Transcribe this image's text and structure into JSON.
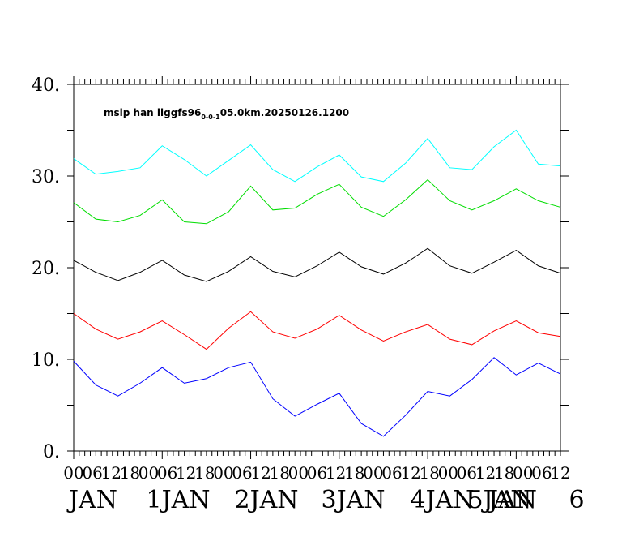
{
  "chart_data": {
    "type": "line",
    "title": "mslp han llggfs96",
    "title_subscript": "0-0-1",
    "title_suffix": "05.0km.20250126.1200",
    "ylim": [
      0,
      40
    ],
    "yticks": [
      "0.",
      "10.",
      "20.",
      "30.",
      "40."
    ],
    "xlim": [
      0,
      132
    ],
    "xtick_hour_labels": [
      "00",
      "06",
      "12",
      "18",
      "00",
      "06",
      "12",
      "18",
      "00",
      "06",
      "12",
      "18",
      "00",
      "06",
      "12",
      "18",
      "00",
      "06",
      "12",
      "18",
      "00",
      "06",
      "12",
      "18",
      "00",
      "06",
      "12"
    ],
    "date_labels": [
      "JAN",
      "1JAN",
      "2JAN",
      "3JAN",
      "4JAN",
      "JAN",
      "5JAN",
      "6"
    ],
    "x": [
      0,
      6,
      12,
      18,
      24,
      30,
      36,
      42,
      48,
      54,
      60,
      66,
      72,
      78,
      84,
      90,
      96,
      102,
      108,
      114,
      120,
      126,
      132
    ],
    "series": [
      {
        "color": "#00ffff",
        "values": [
          31.9,
          30.2,
          30.5,
          30.9,
          33.3,
          31.8,
          30.0,
          31.7,
          33.4,
          30.7,
          29.4,
          31.0,
          32.3,
          29.9,
          29.4,
          31.4,
          34.1,
          30.9,
          30.7,
          33.2,
          35.0,
          31.3,
          31.1
        ]
      },
      {
        "color": "#00dd00",
        "values": [
          27.1,
          25.3,
          25.0,
          25.7,
          27.4,
          25.0,
          24.8,
          26.1,
          28.9,
          26.3,
          26.5,
          28.0,
          29.1,
          26.6,
          25.6,
          27.4,
          29.6,
          27.3,
          26.3,
          27.3,
          28.6,
          27.3,
          26.6
        ]
      },
      {
        "color": "#000000",
        "values": [
          20.8,
          19.5,
          18.6,
          19.5,
          20.8,
          19.2,
          18.5,
          19.6,
          21.2,
          19.6,
          19.0,
          20.2,
          21.7,
          20.1,
          19.3,
          20.5,
          22.1,
          20.2,
          19.4,
          20.6,
          21.9,
          20.2,
          19.4
        ]
      },
      {
        "color": "#ff0000",
        "values": [
          15.0,
          13.3,
          12.2,
          13.0,
          14.2,
          12.7,
          11.1,
          13.4,
          15.2,
          13.0,
          12.3,
          13.3,
          14.8,
          13.2,
          12.0,
          13.0,
          13.8,
          12.2,
          11.6,
          13.1,
          14.2,
          12.9,
          12.5
        ]
      },
      {
        "color": "#0000ff",
        "values": [
          9.8,
          7.2,
          6.0,
          7.4,
          9.1,
          7.4,
          7.9,
          9.1,
          9.7,
          5.7,
          3.8,
          5.1,
          6.3,
          3.0,
          1.6,
          3.9,
          6.5,
          6.0,
          7.8,
          10.2,
          8.3,
          9.6,
          8.4
        ]
      }
    ]
  }
}
